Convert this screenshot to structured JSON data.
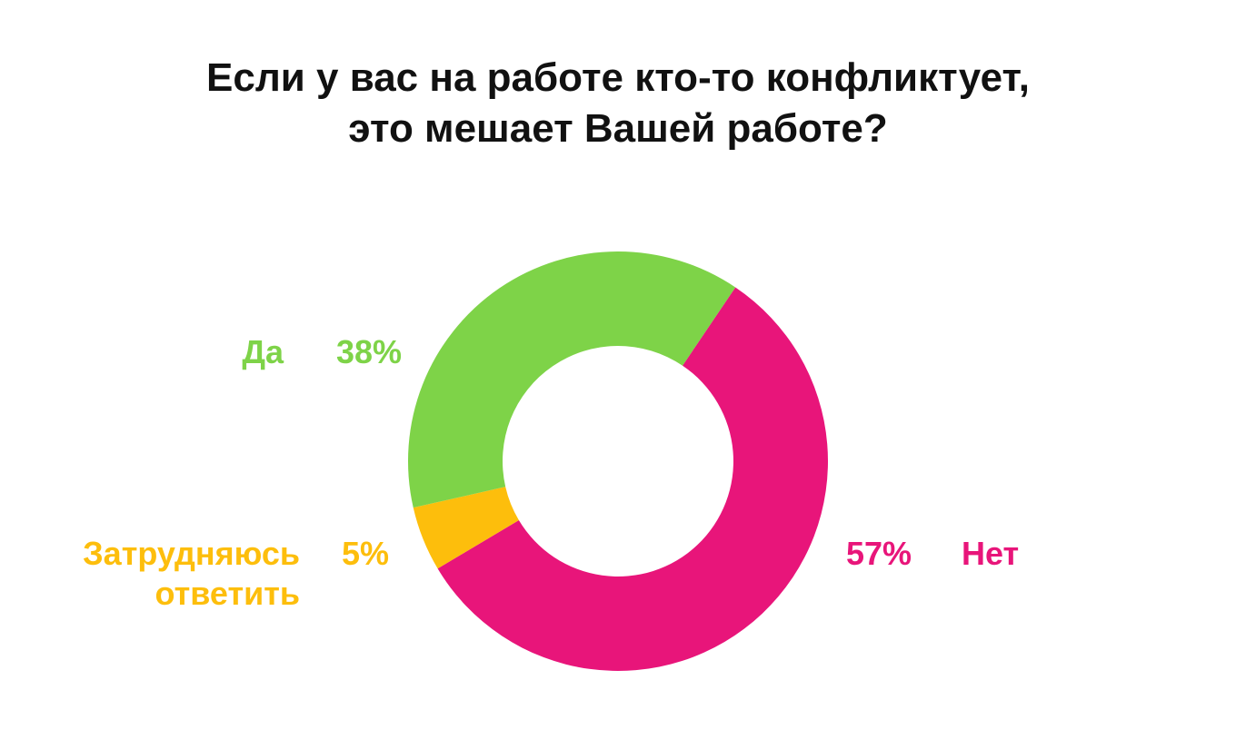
{
  "title_line1": "Если у вас на работе кто-то конфликтует,",
  "title_line2": "это мешает Вашей работе?",
  "chart_data": {
    "type": "pie",
    "style": "donut",
    "title": "Если у вас на работе кто-то конфликтует, это мешает Вашей работе?",
    "slices": [
      {
        "label": "Нет",
        "value": 57,
        "display": "57%",
        "color": "#E8157A"
      },
      {
        "label": "Затрудняюсь ответить",
        "label_line1": "Затрудняюсь",
        "label_line2": "ответить",
        "value": 5,
        "display": "5%",
        "color": "#FDBE0C"
      },
      {
        "label": "Да",
        "value": 38,
        "display": "38%",
        "color": "#7ED348"
      }
    ]
  }
}
